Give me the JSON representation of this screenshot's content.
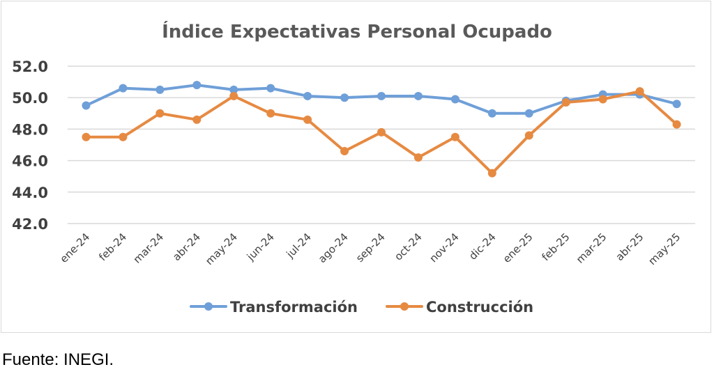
{
  "chart_data": {
    "type": "line",
    "title": "Índice Expectativas Personal Ocupado",
    "categories": [
      "ene-24",
      "feb-24",
      "mar-24",
      "abr-24",
      "may-24",
      "jun-24",
      "jul-24",
      "ago-24",
      "sep-24",
      "oct-24",
      "nov-24",
      "dic-24",
      "ene-25",
      "feb-25",
      "mar-25",
      "abr-25",
      "may-25"
    ],
    "series": [
      {
        "name": "Transformación",
        "color": "#6f9fd8",
        "values": [
          49.5,
          50.6,
          50.5,
          50.8,
          50.5,
          50.6,
          50.1,
          50.0,
          50.1,
          50.1,
          49.9,
          49.0,
          49.0,
          49.8,
          50.2,
          50.2,
          49.6
        ]
      },
      {
        "name": "Construcción",
        "color": "#e68a42",
        "values": [
          47.5,
          47.5,
          49.0,
          48.6,
          50.1,
          49.0,
          48.6,
          46.6,
          47.8,
          46.2,
          47.5,
          45.2,
          47.6,
          49.7,
          49.9,
          50.4,
          48.3
        ]
      }
    ],
    "yticks": [
      "52.0",
      "50.0",
      "48.0",
      "46.0",
      "44.0",
      "42.0"
    ],
    "ylim": [
      42,
      52
    ],
    "grid": true,
    "legend_position": "bottom"
  },
  "source": "Fuente: INEGI."
}
